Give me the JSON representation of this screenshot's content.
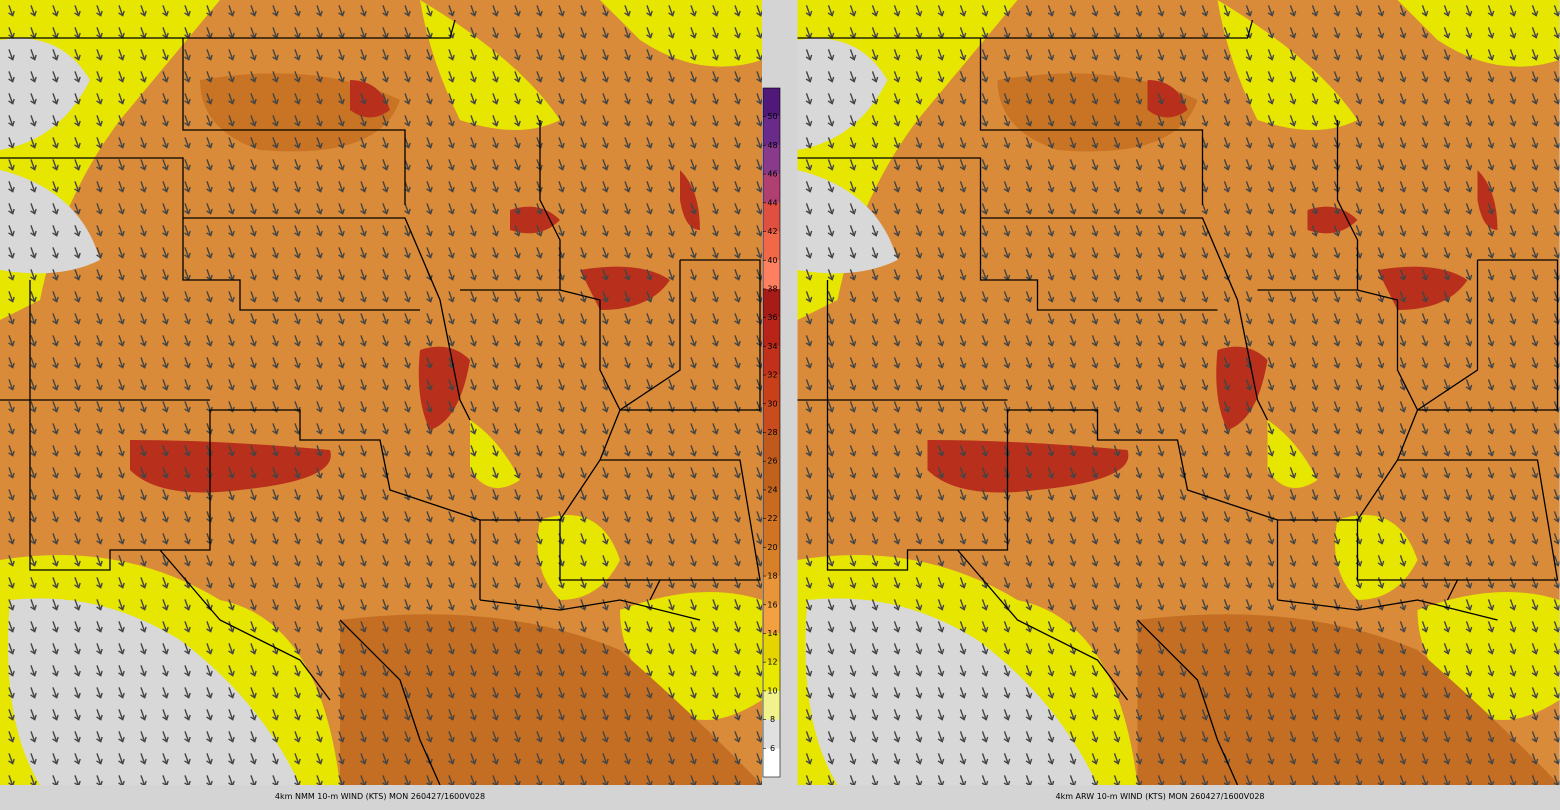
{
  "panels": [
    {
      "caption": "4km NMM 10-m WIND (KTS) MON 260427/1600V028"
    },
    {
      "caption": "4km ARW 10-m WIND (KTS) MON 260427/1600V028"
    }
  ],
  "colorbar": {
    "ticks": [
      6,
      8,
      10,
      12,
      14,
      16,
      18,
      20,
      22,
      24,
      26,
      28,
      30,
      32,
      34,
      36,
      38,
      40,
      42,
      44,
      46,
      48,
      50
    ],
    "colors": [
      "#ffffff",
      "#e0e0e0",
      "#f2f28c",
      "#e8e800",
      "#e6d400",
      "#f2a040",
      "#e89438",
      "#d88028",
      "#d07424",
      "#c86a20",
      "#c0621c",
      "#c05a1c",
      "#c84c1c",
      "#c8401a",
      "#c0301a",
      "#b82418",
      "#a81c18",
      "#ff8060",
      "#f06848",
      "#e05040",
      "#b04070",
      "#8a3a8a",
      "#6a2a8a",
      "#501878"
    ]
  }
}
